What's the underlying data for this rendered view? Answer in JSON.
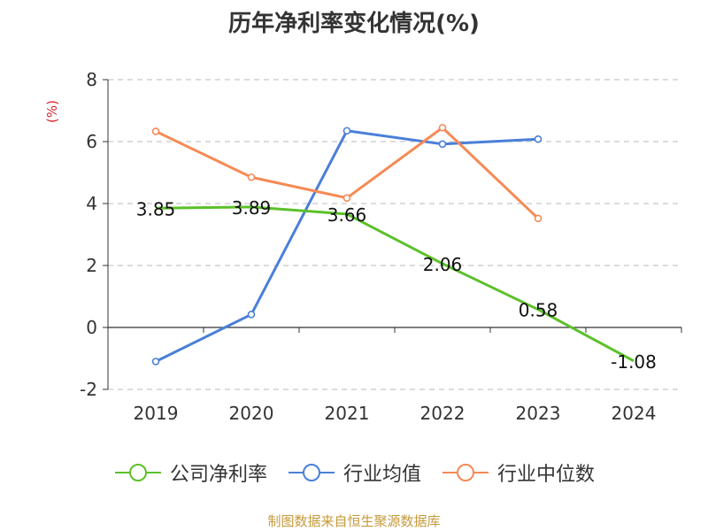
{
  "chart_data": {
    "type": "line",
    "title": "历年净利率变化情况(%)",
    "ylabel": "(%)",
    "categories": [
      "2019",
      "2020",
      "2021",
      "2022",
      "2023",
      "2024"
    ],
    "ylim": [
      -2,
      8
    ],
    "yticks": [
      -2,
      0,
      2,
      4,
      6,
      8
    ],
    "grid": true,
    "legend_position": "bottom",
    "series": [
      {
        "name": "公司净利率",
        "color": "#5cc02a",
        "values": [
          3.85,
          3.89,
          3.66,
          2.06,
          0.58,
          -1.08
        ],
        "labels": [
          "3.85",
          "3.89",
          "3.66",
          "2.06",
          "0.58",
          "-1.08"
        ]
      },
      {
        "name": "行业均值",
        "color": "#4a7fd8",
        "values": [
          -1.1,
          0.42,
          6.35,
          5.92,
          6.08,
          null
        ]
      },
      {
        "name": "行业中位数",
        "color": "#f58a55",
        "values": [
          6.33,
          4.85,
          4.18,
          6.45,
          3.52,
          null
        ]
      }
    ]
  },
  "source": "制图数据来自恒生聚源数据库",
  "colors": {
    "ylabel": "#d9262d",
    "grid": "#c8c8c8",
    "axis": "#333333",
    "text": "#333333"
  }
}
